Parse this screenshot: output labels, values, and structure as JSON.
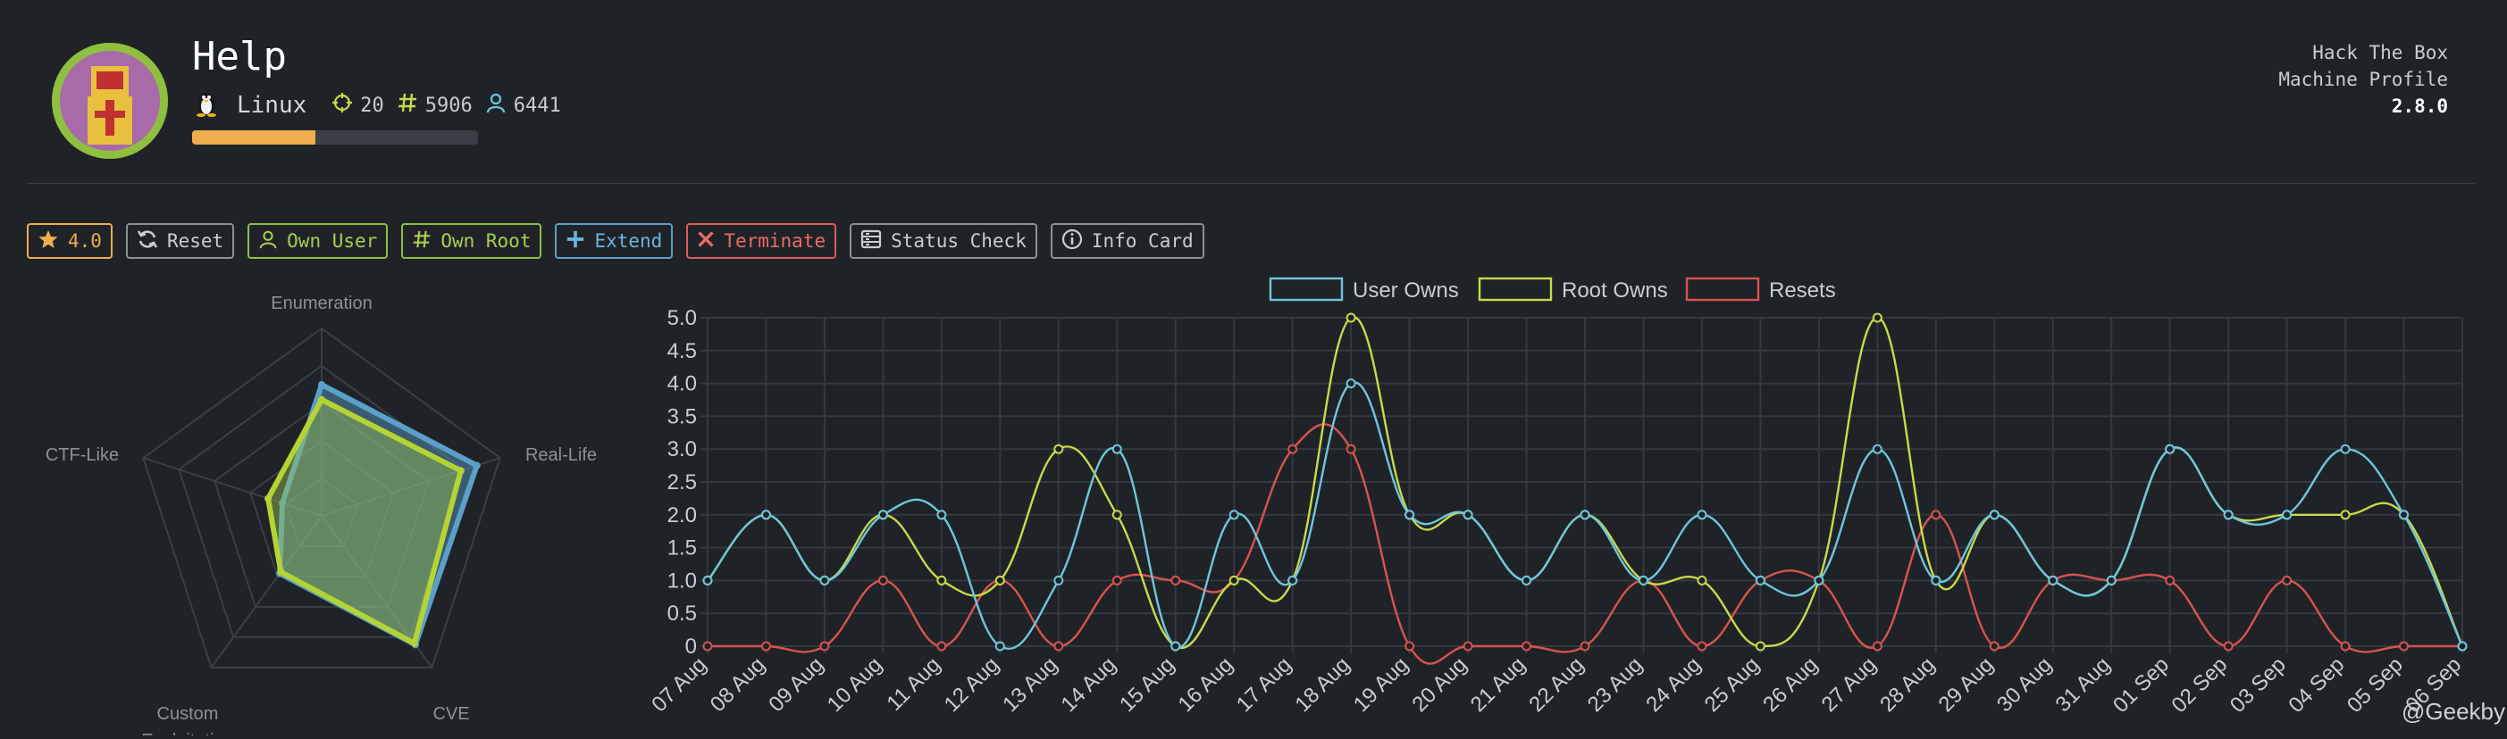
{
  "machine": {
    "name": "Help",
    "os": "Linux",
    "points": "20",
    "root_owns": "5906",
    "user_owns": "6441",
    "difficulty_fraction": 0.43
  },
  "brand": {
    "line1": "Hack The Box",
    "line2": "Machine Profile",
    "version": "2.8.0"
  },
  "toolbar": {
    "rating": "4.0",
    "reset": "Reset",
    "own_user": "Own User",
    "own_root": "Own Root",
    "extend": "Extend",
    "terminate": "Terminate",
    "status_check": "Status Check",
    "info_card": "Info Card"
  },
  "colors": {
    "user": "#6fc6dc",
    "root": "#c9d94a",
    "resets": "#d9534f",
    "rating": "#f0ad4e",
    "own": "#8fbf3f",
    "extend": "#5aa0c8",
    "terminate": "#e05c57",
    "neutral": "#9aa0a6"
  },
  "radar": {
    "labels": [
      "Enumeration",
      "Real-Life",
      "CVE",
      "Custom Exploitation",
      "CTF-Like"
    ],
    "series": [
      {
        "values": [
          0.7,
          0.87,
          0.85,
          0.38,
          0.22
        ]
      },
      {
        "values": [
          0.62,
          0.78,
          0.84,
          0.37,
          0.3
        ]
      }
    ]
  },
  "chart_data": {
    "type": "line",
    "x": [
      "07 Aug",
      "08 Aug",
      "09 Aug",
      "10 Aug",
      "11 Aug",
      "12 Aug",
      "13 Aug",
      "14 Aug",
      "15 Aug",
      "16 Aug",
      "17 Aug",
      "18 Aug",
      "19 Aug",
      "20 Aug",
      "21 Aug",
      "22 Aug",
      "23 Aug",
      "24 Aug",
      "25 Aug",
      "26 Aug",
      "27 Aug",
      "28 Aug",
      "29 Aug",
      "30 Aug",
      "31 Aug",
      "01 Sep",
      "02 Sep",
      "03 Sep",
      "04 Sep",
      "05 Sep",
      "06 Sep"
    ],
    "series": [
      {
        "name": "User Owns",
        "values": [
          1,
          2,
          1,
          2,
          2,
          0,
          1,
          3,
          0,
          2,
          1,
          4,
          2,
          2,
          1,
          2,
          1,
          2,
          1,
          1,
          3,
          1,
          2,
          1,
          1,
          3,
          2,
          2,
          3,
          2,
          0
        ]
      },
      {
        "name": "Root Owns",
        "values": [
          1,
          2,
          1,
          2,
          1,
          1,
          3,
          2,
          0,
          1,
          1,
          5,
          2,
          2,
          1,
          2,
          1,
          1,
          0,
          1,
          5,
          1,
          2,
          1,
          1,
          3,
          2,
          2,
          2,
          2,
          0
        ]
      },
      {
        "name": "Resets",
        "values": [
          0,
          0,
          0,
          1,
          0,
          1,
          0,
          1,
          1,
          1,
          3,
          3,
          0,
          0,
          0,
          0,
          1,
          0,
          1,
          1,
          0,
          2,
          0,
          1,
          1,
          1,
          0,
          1,
          0,
          0,
          0
        ]
      }
    ],
    "yticks": [
      "0",
      "0.5",
      "1.0",
      "1.5",
      "2.0",
      "2.5",
      "3.0",
      "3.5",
      "4.0",
      "4.5",
      "5.0"
    ],
    "ylim": [
      0,
      5
    ],
    "legend_position": "top-center",
    "grid": true
  },
  "watermark": "@Geekby"
}
